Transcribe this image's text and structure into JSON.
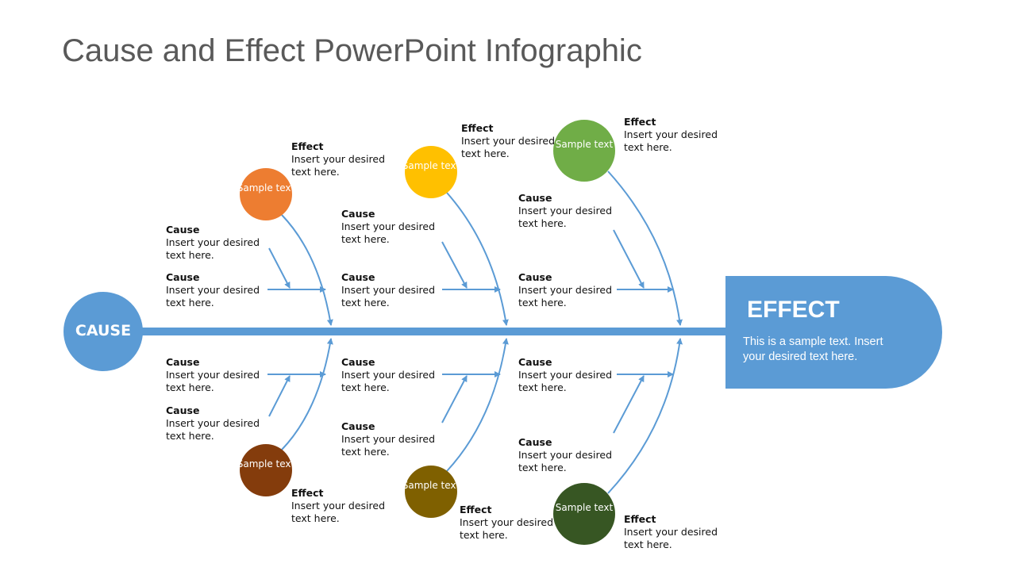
{
  "title": "Cause and Effect PowerPoint Infographic",
  "colors": {
    "accent": "#5B9BD5"
  },
  "cause": {
    "label": "CAUSE"
  },
  "effect": {
    "title": "EFFECT",
    "description": "This is a sample text. Insert your desired text here."
  },
  "circles": [
    {
      "text": "Sample text",
      "color": "#ED7D31"
    },
    {
      "text": "Sample text",
      "color": "#FFC000"
    },
    {
      "text": "Sample text",
      "color": "#70AD47"
    },
    {
      "text": "Sample text",
      "color": "#843C0C"
    },
    {
      "text": "Sample text",
      "color": "#7F6000"
    },
    {
      "text": "Sample text",
      "color": "#375623"
    }
  ],
  "effects": [
    {
      "heading": "Effect",
      "text1": "Insert your desired",
      "text2": "text here."
    },
    {
      "heading": "Effect",
      "text1": "Insert your desired",
      "text2": "text here."
    },
    {
      "heading": "Effect",
      "text1": "Insert your desired",
      "text2": "text here."
    },
    {
      "heading": "Effect",
      "text1": "Insert your desired",
      "text2": "text here."
    },
    {
      "heading": "Effect",
      "text1": "Insert your desired",
      "text2": "text here."
    },
    {
      "heading": "Effect",
      "text1": "Insert your desired",
      "text2": "text here."
    }
  ],
  "causes": [
    {
      "heading": "Cause",
      "text1": "Insert your desired",
      "text2": "text here."
    },
    {
      "heading": "Cause",
      "text1": "Insert your desired",
      "text2": "text here."
    },
    {
      "heading": "Cause",
      "text1": "Insert your desired",
      "text2": "text here."
    },
    {
      "heading": "Cause",
      "text1": "Insert your desired",
      "text2": "text here."
    },
    {
      "heading": "Cause",
      "text1": "Insert your desired",
      "text2": "text here."
    },
    {
      "heading": "Cause",
      "text1": "Insert your desired",
      "text2": "text here."
    },
    {
      "heading": "Cause",
      "text1": "Insert your desired",
      "text2": "text here."
    },
    {
      "heading": "Cause",
      "text1": "Insert your desired",
      "text2": "text here."
    },
    {
      "heading": "Cause",
      "text1": "Insert your desired",
      "text2": "text here."
    },
    {
      "heading": "Cause",
      "text1": "Insert your desired",
      "text2": "text here."
    },
    {
      "heading": "Cause",
      "text1": "Insert your desired",
      "text2": "text here."
    },
    {
      "heading": "Cause",
      "text1": "Insert your desired",
      "text2": "text here."
    }
  ]
}
